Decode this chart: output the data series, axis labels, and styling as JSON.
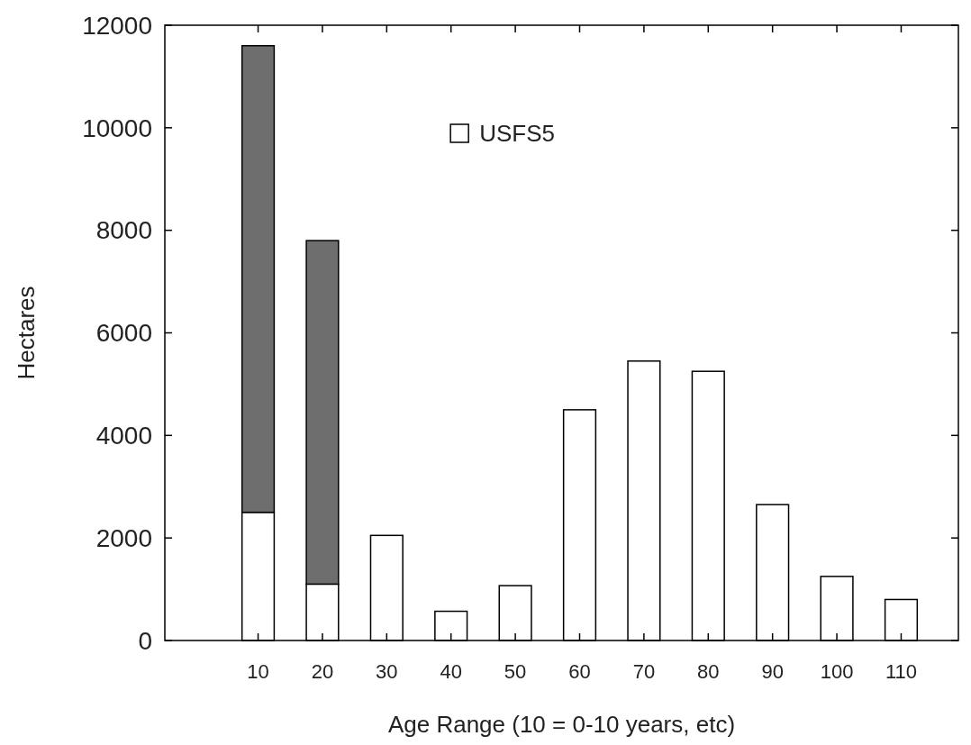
{
  "chart_data": {
    "type": "bar",
    "xlabel": "Age Range (10 = 0-10 years, etc)",
    "ylabel": "Hectares",
    "categories": [
      "10",
      "20",
      "30",
      "40",
      "50",
      "60",
      "70",
      "80",
      "90",
      "100",
      "110"
    ],
    "stacked": true,
    "series": [
      {
        "name": "USFS5",
        "color": "#ffffff",
        "values": [
          2500,
          1100,
          2050,
          570,
          1070,
          4500,
          5450,
          5250,
          2650,
          1250,
          800
        ]
      },
      {
        "color": "#6e6e6e",
        "values": [
          9100,
          6700,
          null,
          null,
          null,
          null,
          null,
          null,
          null,
          null,
          null
        ]
      }
    ],
    "ylim": [
      0,
      12000
    ],
    "yticks": [
      0,
      2000,
      4000,
      6000,
      8000,
      10000,
      12000
    ],
    "legend": "top",
    "grid": false
  }
}
